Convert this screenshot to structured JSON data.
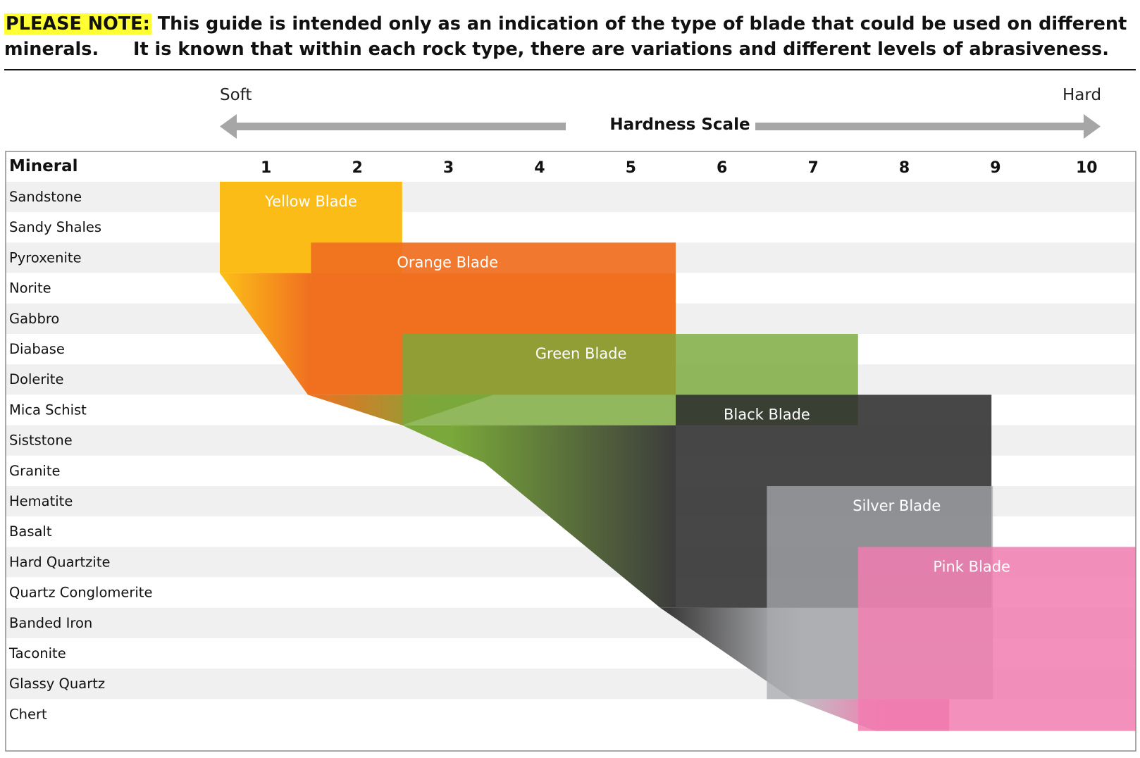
{
  "note": {
    "highlight": "PLEASE NOTE:",
    "line1": "This guide is intended only as an indication of the type of blade that could be used on different minerals.",
    "line2": "It is known that within each rock type, there are variations and different levels of abrasiveness."
  },
  "scale": {
    "title": "Hardness Scale",
    "soft_label": "Soft",
    "hard_label": "Hard"
  },
  "colors": {
    "yellow": "#fbbc18",
    "orange": "#f07020",
    "green": "#7aa83a",
    "black": "#2e2e2e",
    "silver": "#a8a9ad",
    "pink": "#f17cb0",
    "row_stripe": "#f0f0f0",
    "arrow": "#a6a6a6"
  },
  "chart_data": {
    "type": "table",
    "header_label": "Mineral",
    "hardness_columns": [
      1,
      2,
      3,
      4,
      5,
      6,
      7,
      8,
      9,
      10
    ],
    "minerals": [
      "Sandstone",
      "Sandy Shales",
      "Pyroxenite",
      "Norite",
      "Gabbro",
      "Diabase",
      "Dolerite",
      "Mica Schist",
      "Siststone",
      "Granite",
      "Hematite",
      "Basalt",
      "Hard Quartzite",
      "Quartz Conglomerite",
      "Banded Iron",
      "Taconite",
      "Glassy Quartz",
      "Chert"
    ],
    "blades": [
      {
        "name": "Yellow Blade",
        "color": "#fbbc18",
        "hardness_min": 1,
        "hardness_max": 2,
        "mineral_first": "Sandstone",
        "mineral_last": "Pyroxenite"
      },
      {
        "name": "Orange Blade",
        "color": "#f07020",
        "hardness_min": 2,
        "hardness_max": 5,
        "mineral_first": "Pyroxenite",
        "mineral_last": "Gabbro"
      },
      {
        "name": "Green Blade",
        "color": "#7aa83a",
        "hardness_min": 3,
        "hardness_max": 6.5,
        "mineral_first": "Diabase",
        "mineral_last": "Mica Schist"
      },
      {
        "name": "Black Blade",
        "color": "#2e2e2e",
        "hardness_min": 6,
        "hardness_max": 8,
        "mineral_first": "Mica Schist",
        "mineral_last": "Quartz Conglomerite"
      },
      {
        "name": "Silver Blade",
        "color": "#a8a9ad",
        "hardness_min": 7,
        "hardness_max": 9,
        "mineral_first": "Hematite",
        "mineral_last": "Glassy Quartz"
      },
      {
        "name": "Pink Blade",
        "color": "#f17cb0",
        "hardness_min": 8,
        "hardness_max": 10,
        "mineral_first": "Hard Quartzite",
        "mineral_last": "Chert"
      }
    ]
  }
}
